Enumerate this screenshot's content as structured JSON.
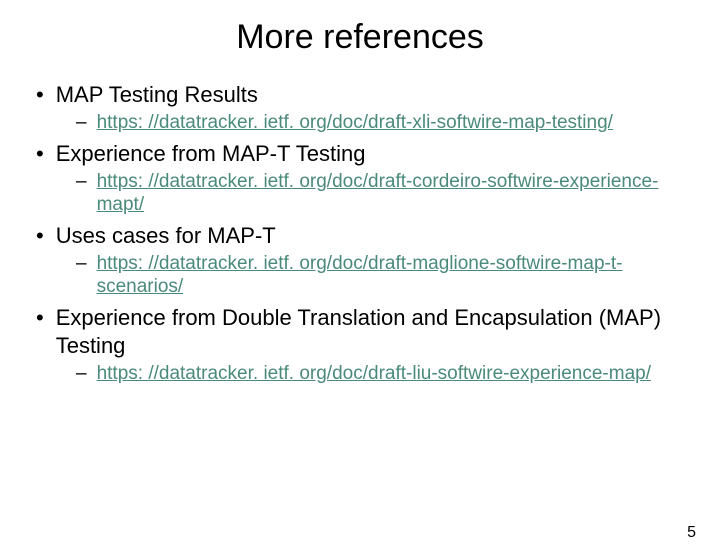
{
  "title": "More references",
  "items": [
    {
      "label": "MAP Testing Results",
      "link": "https: //datatracker. ietf. org/doc/draft-xli-softwire-map-testing/"
    },
    {
      "label": "Experience from MAP-T Testing",
      "link": "https: //datatracker. ietf. org/doc/draft-cordeiro-softwire-experience-mapt/"
    },
    {
      "label": "Uses cases for MAP-T",
      "link": "https: //datatracker. ietf. org/doc/draft-maglione-softwire-map-t-scenarios/"
    },
    {
      "label": "Experience from Double Translation and Encapsulation (MAP) Testing",
      "link": "https: //datatracker. ietf. org/doc/draft-liu-softwire-experience-map/"
    }
  ],
  "pageNumber": "5",
  "colors": {
    "link": "#4a8a7a",
    "text": "#000000",
    "background": "#ffffff"
  },
  "fonts": {
    "title_size": 34,
    "bullet_size": 22,
    "link_size": 19,
    "pagenum_size": 16
  }
}
